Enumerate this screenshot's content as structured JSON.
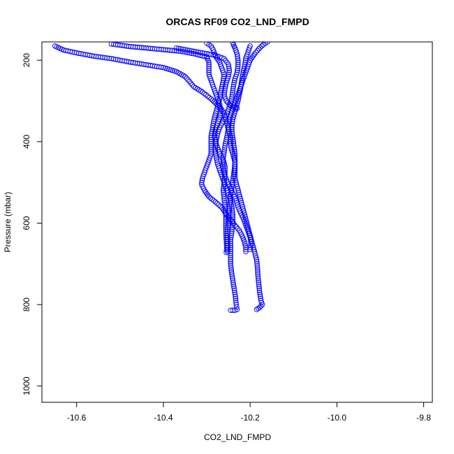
{
  "chart_data": {
    "type": "scatter",
    "title": "ORCAS RF09 CO2_LND_FMPD",
    "xlabel": "CO2_LND_FMPD",
    "ylabel": "Pressure (mbar)",
    "xlim": [
      -10.68,
      -9.78
    ],
    "ylim": [
      1040,
      155
    ],
    "y_reversed": true,
    "x_ticks": [
      -10.6,
      -10.4,
      -10.2,
      -10.0,
      -9.8
    ],
    "x_tick_labels": [
      "-10.6",
      "-10.4",
      "-10.2",
      "-10.0",
      "-9.8"
    ],
    "y_ticks": [
      200,
      400,
      600,
      800,
      1000
    ],
    "y_tick_labels": [
      "200",
      "400",
      "600",
      "800",
      "1000"
    ],
    "grid": false,
    "legend": "none",
    "marker": "open-circle",
    "color": "#0000ff",
    "series": [
      {
        "points": [
          [
            -10.65,
            165
          ],
          [
            -10.63,
            175
          ],
          [
            -10.6,
            182
          ],
          [
            -10.56,
            190
          ],
          [
            -10.52,
            196
          ],
          [
            -10.48,
            204
          ],
          [
            -10.44,
            211
          ],
          [
            -10.4,
            218
          ],
          [
            -10.37,
            228
          ],
          [
            -10.35,
            240
          ],
          [
            -10.34,
            252
          ],
          [
            -10.33,
            265
          ],
          [
            -10.31,
            278
          ],
          [
            -10.29,
            295
          ],
          [
            -10.27,
            315
          ],
          [
            -10.26,
            330
          ],
          [
            -10.255,
            350
          ],
          [
            -10.25,
            370
          ],
          [
            -10.245,
            390
          ],
          [
            -10.245,
            410
          ],
          [
            -10.24,
            430
          ],
          [
            -10.235,
            450
          ],
          [
            -10.235,
            470
          ],
          [
            -10.235,
            490
          ],
          [
            -10.23,
            510
          ],
          [
            -10.225,
            530
          ],
          [
            -10.22,
            550
          ],
          [
            -10.215,
            570
          ],
          [
            -10.21,
            590
          ],
          [
            -10.205,
            610
          ],
          [
            -10.2,
            630
          ],
          [
            -10.195,
            650
          ],
          [
            -10.19,
            670
          ],
          [
            -10.185,
            690
          ],
          [
            -10.183,
            710
          ],
          [
            -10.182,
            730
          ],
          [
            -10.18,
            750
          ],
          [
            -10.178,
            770
          ],
          [
            -10.175,
            790
          ],
          [
            -10.172,
            800
          ],
          [
            -10.178,
            807
          ],
          [
            -10.185,
            812
          ]
        ]
      },
      {
        "points": [
          [
            -10.52,
            160
          ],
          [
            -10.48,
            166
          ],
          [
            -10.44,
            170
          ],
          [
            -10.4,
            174
          ],
          [
            -10.36,
            178
          ],
          [
            -10.33,
            184
          ],
          [
            -10.3,
            192
          ],
          [
            -10.295,
            205
          ],
          [
            -10.295,
            220
          ],
          [
            -10.295,
            235
          ],
          [
            -10.29,
            250
          ],
          [
            -10.285,
            265
          ],
          [
            -10.28,
            280
          ],
          [
            -10.275,
            295
          ],
          [
            -10.27,
            310
          ],
          [
            -10.268,
            325
          ],
          [
            -10.27,
            340
          ],
          [
            -10.275,
            355
          ],
          [
            -10.28,
            370
          ],
          [
            -10.282,
            385
          ],
          [
            -10.28,
            400
          ],
          [
            -10.275,
            415
          ],
          [
            -10.27,
            430
          ],
          [
            -10.262,
            445
          ],
          [
            -10.258,
            460
          ],
          [
            -10.258,
            480
          ],
          [
            -10.26,
            500
          ],
          [
            -10.262,
            520
          ],
          [
            -10.26,
            540
          ],
          [
            -10.258,
            560
          ],
          [
            -10.256,
            580
          ],
          [
            -10.256,
            600
          ],
          [
            -10.256,
            620
          ],
          [
            -10.255,
            640
          ],
          [
            -10.254,
            660
          ],
          [
            -10.255,
            672
          ]
        ]
      },
      {
        "points": [
          [
            -10.3,
            158
          ],
          [
            -10.29,
            165
          ],
          [
            -10.285,
            175
          ],
          [
            -10.28,
            190
          ],
          [
            -10.27,
            205
          ],
          [
            -10.265,
            220
          ],
          [
            -10.26,
            235
          ],
          [
            -10.262,
            250
          ],
          [
            -10.265,
            265
          ],
          [
            -10.268,
            280
          ],
          [
            -10.27,
            295
          ],
          [
            -10.274,
            310
          ],
          [
            -10.278,
            325
          ],
          [
            -10.282,
            340
          ],
          [
            -10.285,
            355
          ],
          [
            -10.287,
            370
          ],
          [
            -10.29,
            385
          ],
          [
            -10.29,
            400
          ],
          [
            -10.29,
            415
          ],
          [
            -10.29,
            430
          ],
          [
            -10.295,
            445
          ],
          [
            -10.3,
            460
          ],
          [
            -10.305,
            475
          ],
          [
            -10.31,
            490
          ],
          [
            -10.312,
            505
          ],
          [
            -10.305,
            520
          ],
          [
            -10.295,
            535
          ],
          [
            -10.28,
            548
          ],
          [
            -10.265,
            562
          ],
          [
            -10.255,
            578
          ],
          [
            -10.245,
            592
          ],
          [
            -10.235,
            605
          ],
          [
            -10.225,
            618
          ],
          [
            -10.218,
            632
          ],
          [
            -10.213,
            646
          ],
          [
            -10.21,
            660
          ],
          [
            -10.21,
            670
          ]
        ]
      },
      {
        "points": [
          [
            -10.24,
            158
          ],
          [
            -10.235,
            170
          ],
          [
            -10.23,
            185
          ],
          [
            -10.228,
            200
          ],
          [
            -10.228,
            215
          ],
          [
            -10.23,
            230
          ],
          [
            -10.235,
            245
          ],
          [
            -10.238,
            260
          ],
          [
            -10.24,
            275
          ],
          [
            -10.242,
            290
          ],
          [
            -10.245,
            305
          ],
          [
            -10.25,
            320
          ],
          [
            -10.255,
            335
          ],
          [
            -10.262,
            350
          ],
          [
            -10.27,
            365
          ],
          [
            -10.275,
            380
          ],
          [
            -10.278,
            395
          ],
          [
            -10.28,
            410
          ],
          [
            -10.28,
            425
          ],
          [
            -10.278,
            440
          ],
          [
            -10.275,
            455
          ],
          [
            -10.27,
            470
          ],
          [
            -10.265,
            485
          ],
          [
            -10.26,
            500
          ],
          [
            -10.255,
            515
          ],
          [
            -10.25,
            530
          ],
          [
            -10.245,
            545
          ],
          [
            -10.242,
            560
          ],
          [
            -10.24,
            580
          ],
          [
            -10.24,
            600
          ],
          [
            -10.242,
            620
          ],
          [
            -10.245,
            640
          ],
          [
            -10.245,
            660
          ],
          [
            -10.245,
            680
          ],
          [
            -10.245,
            700
          ],
          [
            -10.243,
            720
          ],
          [
            -10.24,
            740
          ],
          [
            -10.237,
            760
          ],
          [
            -10.234,
            780
          ],
          [
            -10.232,
            800
          ],
          [
            -10.23,
            812
          ],
          [
            -10.235,
            814
          ],
          [
            -10.245,
            814
          ]
        ]
      },
      {
        "points": [
          [
            -10.16,
            155
          ],
          [
            -10.17,
            162
          ],
          [
            -10.18,
            172
          ],
          [
            -10.19,
            185
          ],
          [
            -10.2,
            200
          ],
          [
            -10.205,
            215
          ],
          [
            -10.21,
            230
          ],
          [
            -10.215,
            245
          ],
          [
            -10.22,
            260
          ],
          [
            -10.225,
            275
          ],
          [
            -10.23,
            290
          ],
          [
            -10.235,
            305
          ],
          [
            -10.24,
            320
          ],
          [
            -10.245,
            335
          ],
          [
            -10.248,
            350
          ],
          [
            -10.25,
            365
          ],
          [
            -10.252,
            380
          ],
          [
            -10.255,
            395
          ],
          [
            -10.258,
            410
          ],
          [
            -10.26,
            425
          ],
          [
            -10.262,
            440
          ],
          [
            -10.263,
            455
          ],
          [
            -10.262,
            470
          ],
          [
            -10.258,
            485
          ],
          [
            -10.252,
            500
          ],
          [
            -10.245,
            515
          ],
          [
            -10.238,
            530
          ],
          [
            -10.232,
            545
          ],
          [
            -10.228,
            560
          ],
          [
            -10.222,
            575
          ],
          [
            -10.215,
            590
          ],
          [
            -10.21,
            605
          ],
          [
            -10.205,
            620
          ],
          [
            -10.2,
            635
          ],
          [
            -10.198,
            650
          ],
          [
            -10.2,
            665
          ]
        ]
      },
      {
        "points": [
          [
            -10.2,
            165
          ],
          [
            -10.205,
            180
          ],
          [
            -10.21,
            195
          ],
          [
            -10.212,
            210
          ],
          [
            -10.215,
            225
          ],
          [
            -10.218,
            240
          ],
          [
            -10.22,
            255
          ],
          [
            -10.222,
            270
          ],
          [
            -10.225,
            285
          ],
          [
            -10.228,
            300
          ],
          [
            -10.232,
            315
          ],
          [
            -10.236,
            330
          ],
          [
            -10.24,
            345
          ],
          [
            -10.242,
            360
          ],
          [
            -10.242,
            375
          ],
          [
            -10.24,
            390
          ],
          [
            -10.238,
            405
          ],
          [
            -10.236,
            420
          ],
          [
            -10.235,
            435
          ],
          [
            -10.235,
            450
          ],
          [
            -10.236,
            465
          ],
          [
            -10.238,
            480
          ],
          [
            -10.24,
            495
          ],
          [
            -10.242,
            510
          ],
          [
            -10.244,
            525
          ],
          [
            -10.246,
            540
          ],
          [
            -10.247,
            555
          ],
          [
            -10.248,
            570
          ],
          [
            -10.25,
            585
          ],
          [
            -10.25,
            600
          ],
          [
            -10.252,
            615
          ],
          [
            -10.252,
            630
          ],
          [
            -10.252,
            645
          ],
          [
            -10.252,
            660
          ],
          [
            -10.252,
            670
          ]
        ]
      },
      {
        "points": [
          [
            -10.37,
            170
          ],
          [
            -10.34,
            176
          ],
          [
            -10.31,
            182
          ],
          [
            -10.28,
            188
          ],
          [
            -10.26,
            196
          ],
          [
            -10.25,
            210
          ],
          [
            -10.248,
            225
          ],
          [
            -10.25,
            240
          ],
          [
            -10.255,
            255
          ],
          [
            -10.258,
            270
          ],
          [
            -10.26,
            285
          ],
          [
            -10.255,
            300
          ],
          [
            -10.245,
            312
          ],
          [
            -10.23,
            318
          ]
        ]
      }
    ]
  }
}
